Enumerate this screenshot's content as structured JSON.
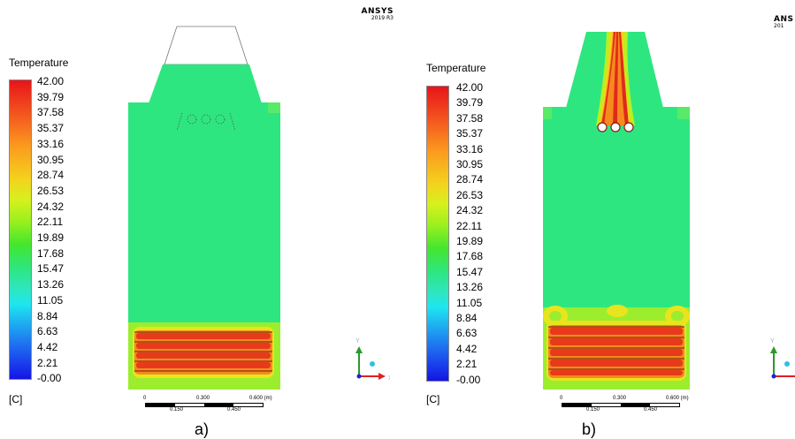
{
  "legend": {
    "title": "Temperature",
    "unit": "[C]",
    "ticks": [
      "42.00",
      "39.79",
      "37.58",
      "35.37",
      "33.16",
      "30.95",
      "28.74",
      "26.53",
      "24.32",
      "22.11",
      "19.89",
      "17.68",
      "15.47",
      "13.26",
      "11.05",
      "8.84",
      "6.63",
      "4.42",
      "2.21",
      "-0.00"
    ]
  },
  "brand": {
    "name": "ANSYS",
    "version": "2019 R3",
    "name_cropped": "ANS",
    "version_cropped": "201"
  },
  "scale": {
    "ticks_top": [
      "0",
      "0.300",
      "0.600  (m)"
    ],
    "ticks_bottom": [
      "0.150",
      "0.450"
    ]
  },
  "axes": {
    "y": "Y",
    "x": "X"
  },
  "captions": {
    "a": "a)",
    "b": "b)"
  },
  "colors": {
    "ambient": "#2ee680",
    "hot": "#f0501e",
    "cold": "#1414e6"
  }
}
